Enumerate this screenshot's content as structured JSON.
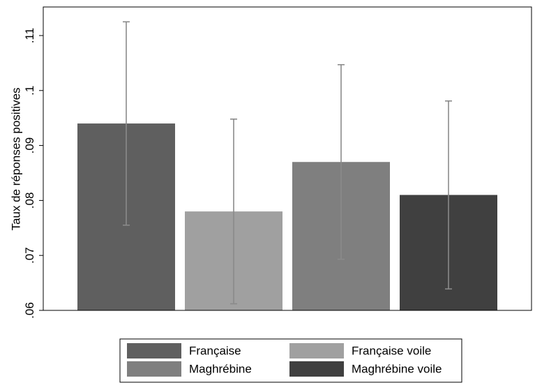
{
  "chart_data": {
    "type": "bar",
    "y_label": "Taux de réponses positives",
    "series": [
      {
        "name": "Française",
        "color": "#5f5f5f",
        "values": [
          0.094
        ],
        "errors": [
          0.0185
        ]
      },
      {
        "name": "Française voile",
        "color": "#a0a0a0",
        "values": [
          0.078
        ],
        "errors": [
          0.0168
        ]
      },
      {
        "name": "Maghrébine",
        "color": "#7f7f7f",
        "values": [
          0.087
        ],
        "errors": [
          0.0177
        ]
      },
      {
        "name": "Maghrébine voile",
        "color": "#404040",
        "values": [
          0.081
        ],
        "errors": [
          0.0171
        ]
      }
    ],
    "error_color": "#8a8a8a",
    "ylim": [
      0.06,
      0.1152
    ],
    "yticks": [
      {
        "value": 0.06,
        "label": ".06"
      },
      {
        "value": 0.07,
        "label": ".07"
      },
      {
        "value": 0.08,
        "label": ".08"
      },
      {
        "value": 0.09,
        "label": ".09"
      },
      {
        "value": 0.1,
        "label": ".1"
      },
      {
        "value": 0.11,
        "label": ".11"
      }
    ],
    "grid": false,
    "legend": "bottom"
  }
}
